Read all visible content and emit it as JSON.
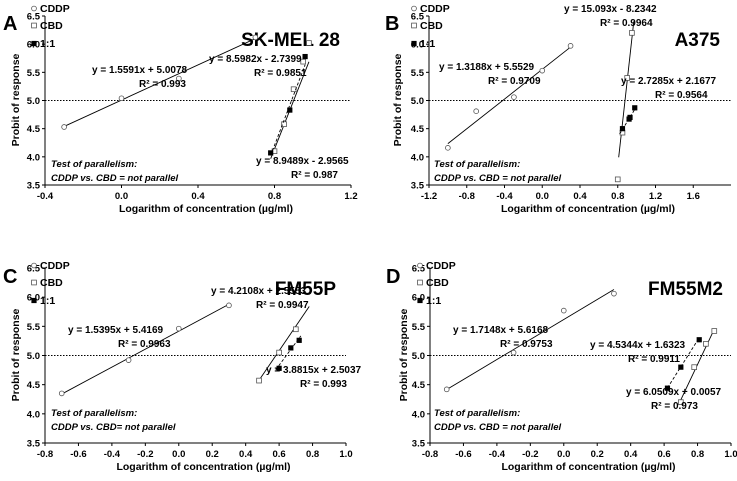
{
  "chart_data": [
    {
      "type": "scatter",
      "panel_letter": "A",
      "title": "SK-MEL 28",
      "xlabel": "Logarithm of concentration (µg/ml)",
      "ylabel": "Probit of response",
      "xlim": [
        -0.4,
        1.2
      ],
      "ylim": [
        3.5,
        6.5
      ],
      "xticks": [
        -0.4,
        0.0,
        0.4,
        0.8,
        1.2
      ],
      "xtick_labels": [
        "-0.4",
        "0.0",
        "0.4",
        "0.8",
        "1.2"
      ],
      "yticks": [
        3.5,
        4.0,
        4.5,
        5.0,
        5.5,
        6.0,
        6.5
      ],
      "ytick_labels": [
        "3.5",
        "4.0",
        "4.5",
        "5.0",
        "5.5",
        "6.0",
        "6.5"
      ],
      "reference_line_y": 5.0,
      "legend": [
        "CDDP",
        "CBD",
        "1:1"
      ],
      "legend_position": "top-left",
      "series": [
        {
          "name": "CDDP",
          "marker": "open-circle",
          "line": "solid",
          "x": [
            -0.3,
            0.0,
            0.3,
            0.7
          ],
          "y": [
            4.53,
            5.04,
            5.39,
            6.12
          ],
          "fit": {
            "slope": 1.5591,
            "intercept": 5.0078,
            "range": [
              -0.3,
              0.7
            ]
          }
        },
        {
          "name": "CBD",
          "marker": "open-square",
          "line": "solid",
          "x": [
            0.8,
            0.85,
            0.9,
            0.95,
            0.98
          ],
          "y": [
            4.1,
            4.58,
            5.2,
            5.69,
            6.02
          ],
          "fit": {
            "slope": 8.5982,
            "intercept": -2.7399,
            "range": [
              0.78,
              0.98
            ]
          }
        },
        {
          "name": "1:1",
          "marker": "filled-square",
          "line": "dashed",
          "x": [
            0.78,
            0.88,
            0.96
          ],
          "y": [
            4.07,
            4.83,
            5.78
          ],
          "fit": {
            "slope": 8.9489,
            "intercept": -2.9565,
            "range": [
              0.78,
              0.96
            ]
          }
        }
      ],
      "annotations": [
        "y = 1.5591x + 5.0078",
        "R² = 0.993",
        "y = 8.5982x - 2.7399",
        "R² = 0.9851",
        "y = 8.9489x - 2.9565",
        "R² = 0.987",
        "Test of parallelism:",
        "CDDP vs. CBD = not parallel"
      ]
    },
    {
      "type": "scatter",
      "panel_letter": "B",
      "title": "A375",
      "xlabel": "Logarithm of concentration (µg/ml)",
      "ylabel": "Probit of response",
      "xlim": [
        -1.2,
        2.0
      ],
      "ylim": [
        3.5,
        6.5
      ],
      "xticks": [
        -1.2,
        -0.8,
        -0.4,
        0.0,
        0.4,
        0.8,
        1.2,
        1.6
      ],
      "xtick_labels": [
        "-1.2",
        "-0.8",
        "-0.4",
        "0.0",
        "0.4",
        "0.8",
        "1.2",
        "1.6"
      ],
      "yticks": [
        3.5,
        4.0,
        4.5,
        5.0,
        5.5,
        6.0,
        6.5
      ],
      "ytick_labels": [
        "3.5",
        "4.0",
        "4.5",
        "5.0",
        "5.5",
        "6.0",
        "6.5"
      ],
      "reference_line_y": 5.0,
      "legend": [
        "CDDP",
        "CBD",
        "1:1"
      ],
      "legend_position": "top-left",
      "series": [
        {
          "name": "CDDP",
          "marker": "open-circle",
          "line": "solid",
          "x": [
            -1.0,
            -0.7,
            -0.3,
            0.0,
            0.3
          ],
          "y": [
            4.16,
            4.81,
            5.06,
            5.53,
            5.97
          ],
          "fit": {
            "slope": 1.3188,
            "intercept": 5.5529,
            "range": [
              -1.0,
              0.3
            ]
          }
        },
        {
          "name": "CBD",
          "marker": "open-square",
          "line": "solid",
          "x": [
            0.8,
            0.85,
            0.9,
            0.95
          ],
          "y": [
            3.6,
            4.43,
            5.4,
            6.2
          ],
          "fit": {
            "slope": 15.093,
            "intercept": -8.2342,
            "range": [
              0.81,
              0.97
            ]
          }
        },
        {
          "name": "1:1",
          "marker": "filled-square",
          "line": "dashed",
          "x": [
            0.85,
            0.92,
            0.93,
            0.98
          ],
          "y": [
            4.5,
            4.67,
            4.7,
            4.87
          ],
          "fit": {
            "slope": 2.7285,
            "intercept": 2.1677,
            "range": [
              0.82,
              0.98
            ]
          }
        }
      ],
      "annotations": [
        "y = 1.3188x + 5.5529",
        "R² = 0.9709",
        "y = 15.093x - 8.2342",
        "R² = 0.9964",
        "y = 2.7285x + 2.1677",
        "R² = 0.9564",
        "Test of parallelism:",
        "CDDP vs. CBD = not parallel"
      ]
    },
    {
      "type": "scatter",
      "panel_letter": "C",
      "title": "FM55P",
      "xlabel": "Logarithm of concentration (µg/ml)",
      "ylabel": "Probit of response",
      "xlim": [
        -0.8,
        1.0
      ],
      "ylim": [
        3.5,
        6.5
      ],
      "xticks": [
        -0.8,
        -0.6,
        -0.4,
        -0.2,
        0.0,
        0.2,
        0.4,
        0.6,
        0.8,
        1.0
      ],
      "xtick_labels": [
        "-0.8",
        "-0.6",
        "-0.4",
        "-0.2",
        "0.0",
        "0.2",
        "0.4",
        "0.6",
        "0.8",
        "1.0"
      ],
      "yticks": [
        3.5,
        4.0,
        4.5,
        5.0,
        5.5,
        6.0,
        6.5
      ],
      "ytick_labels": [
        "3.5",
        "4.0",
        "4.5",
        "5.0",
        "5.5",
        "6.0",
        "6.5"
      ],
      "reference_line_y": 5.0,
      "legend": [
        "CDDP",
        "CBD",
        "1:1"
      ],
      "legend_position": "top-left",
      "series": [
        {
          "name": "CDDP",
          "marker": "open-circle",
          "line": "solid",
          "x": [
            -0.7,
            -0.3,
            0.0,
            0.3
          ],
          "y": [
            4.35,
            4.92,
            5.46,
            5.86
          ],
          "fit": {
            "slope": 1.5395,
            "intercept": 5.4169,
            "range": [
              -0.7,
              0.3
            ]
          }
        },
        {
          "name": "CBD",
          "marker": "open-square",
          "line": "solid",
          "x": [
            0.48,
            0.6,
            0.7
          ],
          "y": [
            4.57,
            5.05,
            5.45
          ],
          "fit": {
            "slope": 4.2108,
            "intercept": 2.5553,
            "range": [
              0.48,
              0.78
            ]
          }
        },
        {
          "name": "1:1",
          "marker": "filled-square",
          "line": "dashed",
          "x": [
            0.6,
            0.67,
            0.72
          ],
          "y": [
            4.78,
            5.13,
            5.26
          ],
          "fit": {
            "slope": 3.8815,
            "intercept": 2.5037,
            "range": [
              0.58,
              0.73
            ]
          }
        }
      ],
      "annotations": [
        "y = 1.5395x + 5.4169",
        "R² = 0.9963",
        "y = 4.2108x + 2.5553",
        "R² = 0.9947",
        "y = 3.8815x + 2.5037",
        "R² = 0.993",
        "Test of parallelism:",
        "CDDP vs. CBD= not parallel"
      ]
    },
    {
      "type": "scatter",
      "panel_letter": "D",
      "title": "FM55M2",
      "xlabel": "Logarithm of concentration (µg/ml)",
      "ylabel": "Probit of response",
      "xlim": [
        -0.8,
        1.0
      ],
      "ylim": [
        3.5,
        6.5
      ],
      "xticks": [
        -0.8,
        -0.6,
        -0.4,
        -0.2,
        0.0,
        0.2,
        0.4,
        0.6,
        0.8,
        1.0
      ],
      "xtick_labels": [
        "-0.8",
        "-0.6",
        "-0.4",
        "-0.2",
        "0.0",
        "0.2",
        "0.4",
        "0.6",
        "0.8",
        "1.0"
      ],
      "yticks": [
        3.5,
        4.0,
        4.5,
        5.0,
        5.5,
        6.0,
        6.5
      ],
      "ytick_labels": [
        "3.5",
        "4.0",
        "4.5",
        "5.0",
        "5.5",
        "6.0",
        "6.5"
      ],
      "reference_line_y": 5.0,
      "legend": [
        "CDDP",
        "CBD",
        "1:1"
      ],
      "legend_position": "top-left",
      "series": [
        {
          "name": "CDDP",
          "marker": "open-circle",
          "line": "solid",
          "x": [
            -0.7,
            -0.3,
            0.0,
            0.3
          ],
          "y": [
            4.42,
            5.05,
            5.77,
            6.06
          ],
          "fit": {
            "slope": 1.7148,
            "intercept": 5.6168,
            "range": [
              -0.7,
              0.3
            ]
          }
        },
        {
          "name": "CBD",
          "marker": "open-square",
          "line": "solid",
          "x": [
            0.7,
            0.78,
            0.85,
            0.9
          ],
          "y": [
            4.2,
            4.8,
            5.2,
            5.42
          ],
          "fit": {
            "slope": 6.0509,
            "intercept": 0.0057,
            "range": [
              0.7,
              0.9
            ]
          }
        },
        {
          "name": "1:1",
          "marker": "filled-square",
          "line": "dashed",
          "x": [
            0.62,
            0.7,
            0.81
          ],
          "y": [
            4.44,
            4.8,
            5.27
          ],
          "fit": {
            "slope": 4.5344,
            "intercept": 1.6323,
            "range": [
              0.62,
              0.81
            ]
          }
        }
      ],
      "annotations": [
        "y = 1.7148x + 5.6168",
        "R² = 0.9753",
        "y = 4.5344x + 1.6323",
        "R² = 0.9911",
        "y = 6.0509x + 0.0057",
        "R² = 0.973",
        "Test of parallelism:",
        "CDDP vs. CBD = not parallel"
      ]
    }
  ]
}
